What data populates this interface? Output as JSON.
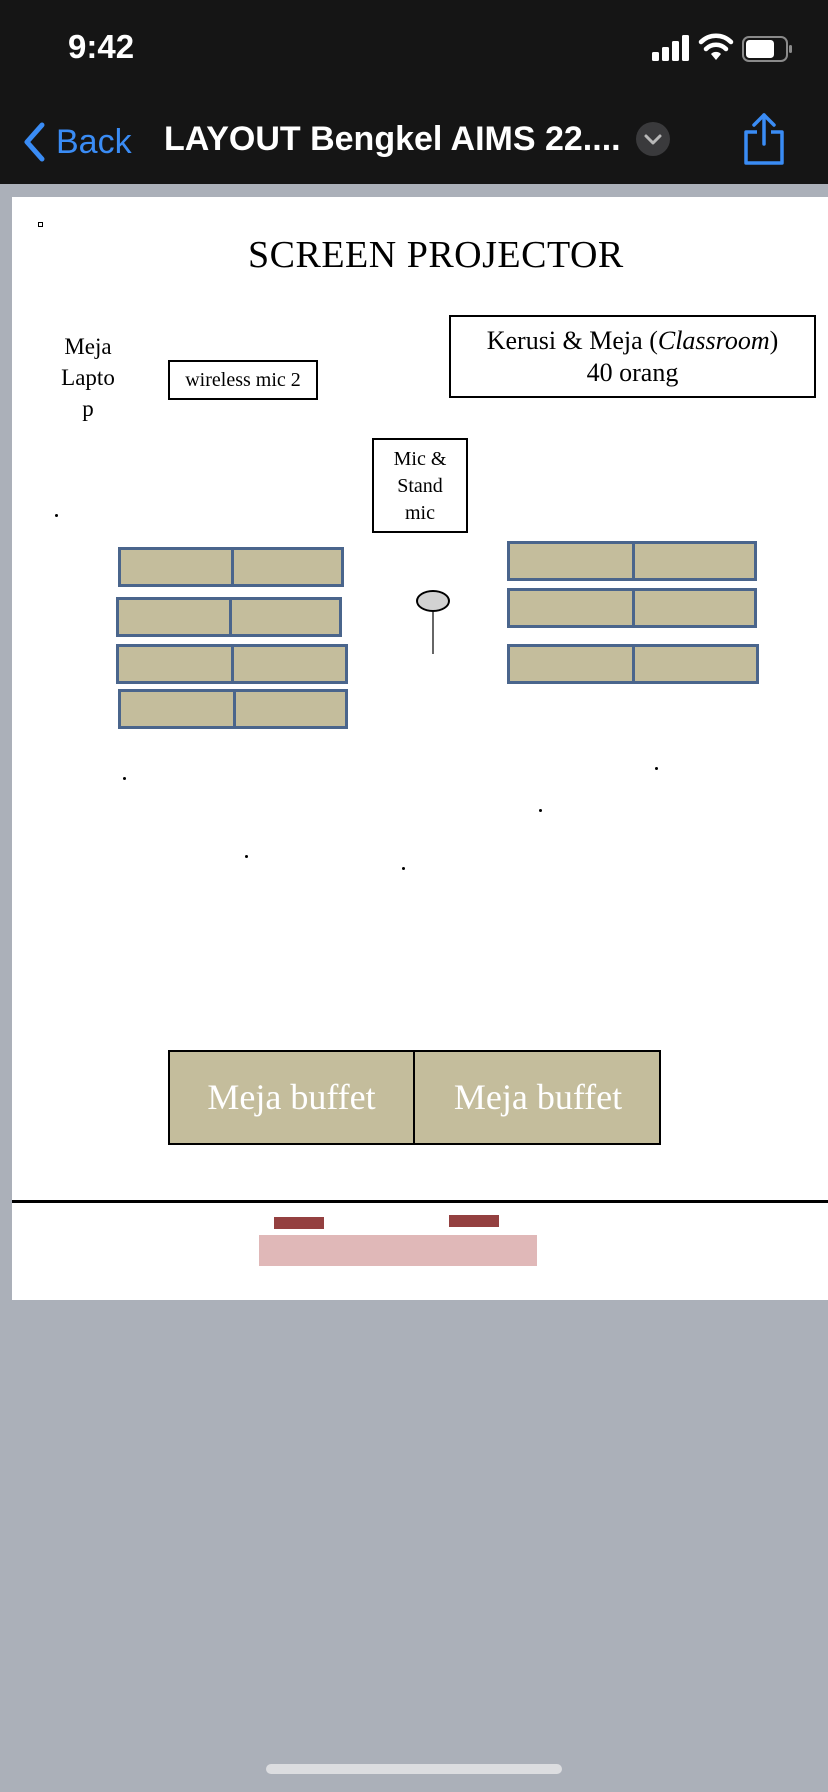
{
  "status_bar": {
    "time": "9:42"
  },
  "nav": {
    "back_label": "Back",
    "title": "LAYOUT Bengkel AIMS 22...."
  },
  "colors": {
    "accent": "#3a8cf5",
    "table_fill": "#c4bd9c",
    "table_border": "#4a658c"
  },
  "document": {
    "screen_title": "SCREEN PROJECTOR",
    "meja_laptop": "Meja Laptop",
    "wireless_mic": "wireless mic 2",
    "classroom": {
      "prefix": "Kerusi & Meja (",
      "italic": "Classroom",
      "suffix": ")",
      "count": "40 orang"
    },
    "stand_mic": {
      "line1": "Mic &",
      "line2": "Stand",
      "line3": "mic"
    },
    "buffet_left": "Meja buffet",
    "buffet_right": "Meja buffet"
  }
}
